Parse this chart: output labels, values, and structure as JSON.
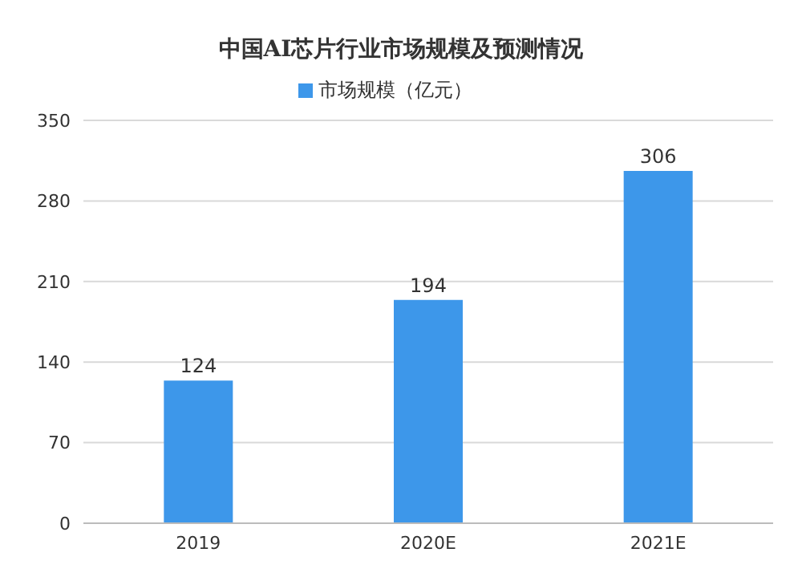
{
  "chart_data": {
    "type": "bar",
    "title": "中国AI芯片行业市场规模及预测情况",
    "categories": [
      "2019",
      "2020E",
      "2021E"
    ],
    "series": [
      {
        "name": "市场规模（亿元）",
        "color": "#3d97ea",
        "values": [
          124,
          194,
          306
        ]
      }
    ],
    "ylim": [
      0,
      350
    ],
    "yticks": [
      0,
      70,
      140,
      210,
      280,
      350
    ],
    "grid": "y",
    "legend": "top",
    "data_labels": true
  }
}
